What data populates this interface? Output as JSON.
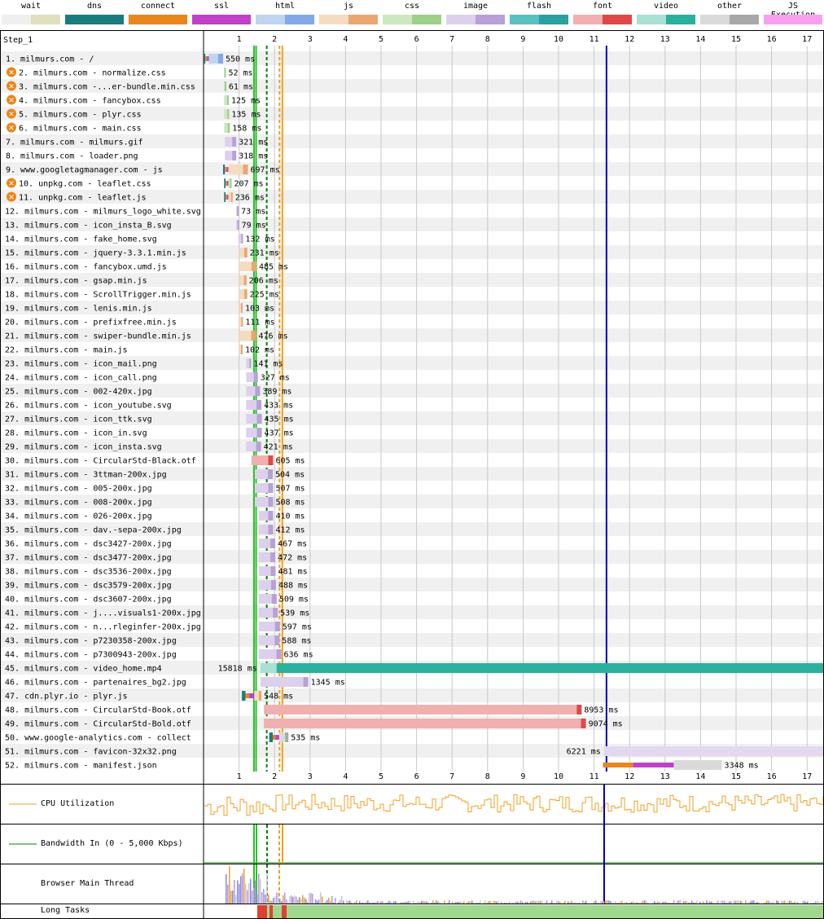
{
  "legend": [
    {
      "label": "wait",
      "colors": [
        "#efefef",
        "#e0e0c0"
      ]
    },
    {
      "label": "dns",
      "colors": [
        "#1c7c7c",
        "#1c7c7c"
      ]
    },
    {
      "label": "connect",
      "colors": [
        "#e8871c",
        "#e8871c"
      ]
    },
    {
      "label": "ssl",
      "colors": [
        "#c040c8",
        "#c040c8"
      ]
    },
    {
      "label": "html",
      "colors": [
        "#c0d4f0",
        "#82a8e8"
      ]
    },
    {
      "label": "js",
      "colors": [
        "#f4dcc0",
        "#e8a870"
      ]
    },
    {
      "label": "css",
      "colors": [
        "#cce8c0",
        "#9cd088"
      ]
    },
    {
      "label": "image",
      "colors": [
        "#ddd0ec",
        "#b8a0d8"
      ]
    },
    {
      "label": "flash",
      "colors": [
        "#5cc0c0",
        "#2ca0a0"
      ]
    },
    {
      "label": "font",
      "colors": [
        "#f0b0b0",
        "#e04848"
      ]
    },
    {
      "label": "video",
      "colors": [
        "#a8e0d4",
        "#2ab09c"
      ]
    },
    {
      "label": "other",
      "colors": [
        "#dadada",
        "#a8a8a8"
      ]
    },
    {
      "label": "JS Execution",
      "colors": [
        "#f8a0f0",
        "#f8a0f0"
      ]
    }
  ],
  "step_label": "Step_1",
  "axis_ticks": [
    "1",
    "2",
    "3",
    "4",
    "5",
    "6",
    "7",
    "8",
    "9",
    "10",
    "11",
    "12",
    "13",
    "14",
    "15",
    "16",
    "17"
  ],
  "requests": [
    {
      "n": "1.",
      "label": "milmurs.com - /",
      "type": "html",
      "start": 0.0,
      "end": 0.55,
      "time": "550 ms",
      "dns": 0.05,
      "conn": 0.05,
      "ssl": 0.05
    },
    {
      "n": "2.",
      "label": "milmurs.com - normalize.css",
      "type": "css",
      "start": 0.58,
      "end": 0.63,
      "time": "52 ms",
      "blocking": true
    },
    {
      "n": "3.",
      "label": "milmurs.com -...er-bundle.min.css",
      "type": "css",
      "start": 0.58,
      "end": 0.64,
      "time": "61 ms",
      "blocking": true
    },
    {
      "n": "4.",
      "label": "milmurs.com - fancybox.css",
      "type": "css",
      "start": 0.58,
      "end": 0.71,
      "time": "125 ms",
      "blocking": true
    },
    {
      "n": "5.",
      "label": "milmurs.com - plyr.css",
      "type": "css",
      "start": 0.58,
      "end": 0.72,
      "time": "135 ms",
      "blocking": true
    },
    {
      "n": "6.",
      "label": "milmurs.com - main.css",
      "type": "css",
      "start": 0.58,
      "end": 0.74,
      "time": "158 ms",
      "blocking": true
    },
    {
      "n": "7.",
      "label": "milmurs.com - milmurs.gif",
      "type": "image",
      "start": 0.6,
      "end": 0.92,
      "time": "321 ms"
    },
    {
      "n": "8.",
      "label": "milmurs.com - loader.png",
      "type": "image",
      "start": 0.6,
      "end": 0.92,
      "time": "318 ms"
    },
    {
      "n": "9.",
      "label": "www.googletagmanager.com - js",
      "type": "js",
      "start": 0.55,
      "end": 1.25,
      "time": "697 ms",
      "dns": 0.05,
      "conn": 0.05,
      "ssl": 0.05
    },
    {
      "n": "10.",
      "label": "unpkg.com - leaflet.css",
      "type": "css",
      "start": 0.58,
      "end": 0.79,
      "time": "207 ms",
      "blocking": true,
      "dns": 0.04,
      "conn": 0.04,
      "ssl": 0.04
    },
    {
      "n": "11.",
      "label": "unpkg.com - leaflet.js",
      "type": "js",
      "start": 0.58,
      "end": 0.82,
      "time": "236 ms",
      "blocking": true,
      "dns": 0.04,
      "conn": 0.04,
      "ssl": 0.04
    },
    {
      "n": "12.",
      "label": "milmurs.com - milmurs_logo_white.svg",
      "type": "image",
      "start": 0.92,
      "end": 0.99,
      "time": "73 ms"
    },
    {
      "n": "13.",
      "label": "milmurs.com - icon_insta_B.svg",
      "type": "image",
      "start": 0.92,
      "end": 1.0,
      "time": "79 ms"
    },
    {
      "n": "14.",
      "label": "milmurs.com - fake_home.svg",
      "type": "image",
      "start": 0.98,
      "end": 1.11,
      "time": "132 ms"
    },
    {
      "n": "15.",
      "label": "milmurs.com - jquery-3.3.1.min.js",
      "type": "js",
      "start": 1.0,
      "end": 1.23,
      "time": "231 ms"
    },
    {
      "n": "16.",
      "label": "milmurs.com - fancybox.umd.js",
      "type": "js",
      "start": 1.0,
      "end": 1.49,
      "time": "485 ms"
    },
    {
      "n": "17.",
      "label": "milmurs.com - gsap.min.js",
      "type": "js",
      "start": 1.0,
      "end": 1.21,
      "time": "206 ms"
    },
    {
      "n": "18.",
      "label": "milmurs.com - ScrollTrigger.min.js",
      "type": "js",
      "start": 1.0,
      "end": 1.23,
      "time": "225 ms"
    },
    {
      "n": "19.",
      "label": "milmurs.com - lenis.min.js",
      "type": "js",
      "start": 1.0,
      "end": 1.1,
      "time": "103 ms"
    },
    {
      "n": "20.",
      "label": "milmurs.com - prefixfree.min.js",
      "type": "js",
      "start": 1.0,
      "end": 1.11,
      "time": "111 ms"
    },
    {
      "n": "21.",
      "label": "milmurs.com - swiper-bundle.min.js",
      "type": "js",
      "start": 1.0,
      "end": 1.48,
      "time": "476 ms"
    },
    {
      "n": "22.",
      "label": "milmurs.com - main.js",
      "type": "js",
      "start": 1.0,
      "end": 1.1,
      "time": "102 ms"
    },
    {
      "n": "23.",
      "label": "milmurs.com - icon_mail.png",
      "type": "image",
      "start": 1.2,
      "end": 1.34,
      "time": "141 ms"
    },
    {
      "n": "24.",
      "label": "milmurs.com - icon_call.png",
      "type": "image",
      "start": 1.2,
      "end": 1.53,
      "time": "327 ms"
    },
    {
      "n": "25.",
      "label": "milmurs.com - 002-420x.jpg",
      "type": "image",
      "start": 1.2,
      "end": 1.59,
      "time": "389 ms"
    },
    {
      "n": "26.",
      "label": "milmurs.com - icon_youtube.svg",
      "type": "image",
      "start": 1.2,
      "end": 1.63,
      "time": "433 ms"
    },
    {
      "n": "27.",
      "label": "milmurs.com - icon_ttk.svg",
      "type": "image",
      "start": 1.2,
      "end": 1.64,
      "time": "435 ms"
    },
    {
      "n": "28.",
      "label": "milmurs.com - icon_in.svg",
      "type": "image",
      "start": 1.2,
      "end": 1.64,
      "time": "437 ms"
    },
    {
      "n": "29.",
      "label": "milmurs.com - icon_insta.svg",
      "type": "image",
      "start": 1.2,
      "end": 1.62,
      "time": "421 ms"
    },
    {
      "n": "30.",
      "label": "milmurs.com - CircularStd-Black.otf",
      "type": "font",
      "start": 1.35,
      "end": 1.96,
      "time": "605 ms"
    },
    {
      "n": "31.",
      "label": "milmurs.com - 3ttman-200x.jpg",
      "type": "image",
      "start": 1.45,
      "end": 1.95,
      "time": "504 ms"
    },
    {
      "n": "32.",
      "label": "milmurs.com - 005-200x.jpg",
      "type": "image",
      "start": 1.45,
      "end": 1.96,
      "time": "507 ms"
    },
    {
      "n": "33.",
      "label": "milmurs.com - 008-200x.jpg",
      "type": "image",
      "start": 1.45,
      "end": 1.96,
      "time": "508 ms"
    },
    {
      "n": "34.",
      "label": "milmurs.com - 026-200x.jpg",
      "type": "image",
      "start": 1.55,
      "end": 1.96,
      "time": "410 ms"
    },
    {
      "n": "35.",
      "label": "milmurs.com - dav.-sepa-200x.jpg",
      "type": "image",
      "start": 1.55,
      "end": 1.96,
      "time": "412 ms"
    },
    {
      "n": "36.",
      "label": "milmurs.com - dsc3427-200x.jpg",
      "type": "image",
      "start": 1.55,
      "end": 2.02,
      "time": "467 ms"
    },
    {
      "n": "37.",
      "label": "milmurs.com - dsc3477-200x.jpg",
      "type": "image",
      "start": 1.55,
      "end": 2.02,
      "time": "472 ms"
    },
    {
      "n": "38.",
      "label": "milmurs.com - dsc3536-200x.jpg",
      "type": "image",
      "start": 1.55,
      "end": 2.03,
      "time": "481 ms"
    },
    {
      "n": "39.",
      "label": "milmurs.com - dsc3579-200x.jpg",
      "type": "image",
      "start": 1.55,
      "end": 2.04,
      "time": "488 ms"
    },
    {
      "n": "40.",
      "label": "milmurs.com - dsc3607-200x.jpg",
      "type": "image",
      "start": 1.55,
      "end": 2.06,
      "time": "509 ms"
    },
    {
      "n": "41.",
      "label": "milmurs.com - j....visuals1-200x.jpg",
      "type": "image",
      "start": 1.55,
      "end": 2.09,
      "time": "539 ms"
    },
    {
      "n": "42.",
      "label": "milmurs.com - n...rleginfer-200x.jpg",
      "type": "image",
      "start": 1.55,
      "end": 2.15,
      "time": "597 ms"
    },
    {
      "n": "43.",
      "label": "milmurs.com - p7230358-200x.jpg",
      "type": "image",
      "start": 1.55,
      "end": 2.14,
      "time": "588 ms"
    },
    {
      "n": "44.",
      "label": "milmurs.com - p7300943-200x.jpg",
      "type": "image",
      "start": 1.55,
      "end": 2.19,
      "time": "636 ms"
    },
    {
      "n": "45.",
      "label": "milmurs.com - video_home.mp4",
      "type": "video",
      "start": 1.6,
      "end": 17.5,
      "time": "15818 ms",
      "label_left": true
    },
    {
      "n": "46.",
      "label": "milmurs.com - partenaires_bg2.jpg",
      "type": "image",
      "start": 1.6,
      "end": 2.95,
      "time": "1345 ms"
    },
    {
      "n": "47.",
      "label": "cdn.plyr.io - plyr.js",
      "type": "js",
      "start": 1.08,
      "end": 1.63,
      "time": "548 ms",
      "dns": 0.1,
      "conn": 0.1,
      "ssl": 0.15
    },
    {
      "n": "48.",
      "label": "milmurs.com - CircularStd-Book.otf",
      "type": "font",
      "start": 1.7,
      "end": 10.65,
      "time": "8953 ms"
    },
    {
      "n": "49.",
      "label": "milmurs.com - CircularStd-Bold.otf",
      "type": "font",
      "start": 1.7,
      "end": 10.77,
      "time": "9074 ms"
    },
    {
      "n": "50.",
      "label": "www.google-analytics.com - collect",
      "type": "other",
      "start": 1.85,
      "end": 2.39,
      "time": "535 ms",
      "dns": 0.1,
      "conn": 0.08,
      "ssl": 0.1
    },
    {
      "n": "51.",
      "label": "milmurs.com - favicon-32x32.png",
      "type": "image",
      "start": 11.28,
      "end": 17.5,
      "time": "6221 ms",
      "label_left": true
    },
    {
      "n": "52.",
      "label": "milmurs.com - manifest.json",
      "type": "other",
      "start": 11.25,
      "end": 14.6,
      "time": "3348 ms",
      "conn": 0.85,
      "ssl": 1.15
    }
  ],
  "bottom": {
    "cpu_label": "CPU Utilization",
    "bandwidth_label": "Bandwidth In (0 - 5,000 Kbps)",
    "main_thread_label": "Browser Main Thread",
    "long_tasks_label": "Long Tasks"
  },
  "markers": {
    "start_render": 1.42,
    "first_paint": 1.48,
    "dom_content_loaded": 1.78,
    "dom_loaded": 2.14,
    "onload": 2.22,
    "doc_complete": 11.35
  },
  "colors": {
    "cpu_line": "#f0a020",
    "bandwidth_line": "#008000",
    "grid": "#c8c8c8",
    "marker_blue": "#0000c0",
    "marker_green": "#28c028",
    "marker_orange": "#f0a020",
    "long_task_green": "#a0d890",
    "long_task_red": "#e04030"
  }
}
